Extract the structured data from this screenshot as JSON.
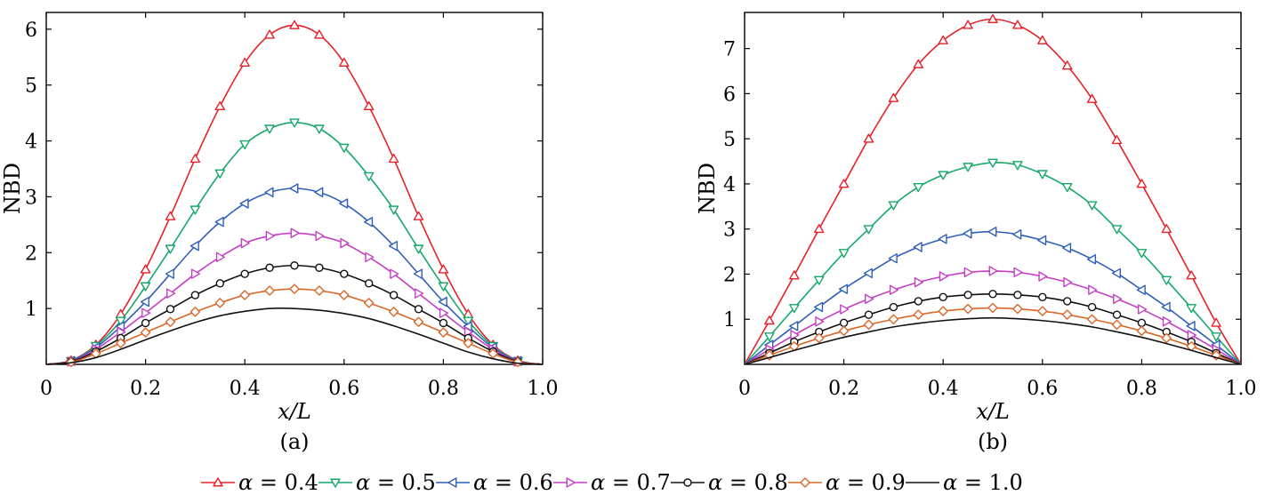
{
  "chart_data": [
    {
      "type": "line",
      "caption": "(a)",
      "xlabel": "x/L",
      "ylabel": "NBD",
      "xlim": [
        0,
        1.0
      ],
      "ylim": [
        0,
        6.3
      ],
      "xticks": [
        "0",
        "0.2",
        "0.4",
        "0.6",
        "0.8",
        "1.0"
      ],
      "xtick_values": [
        0,
        0.2,
        0.4,
        0.6,
        0.8,
        1.0
      ],
      "yticks": [
        "1",
        "2",
        "3",
        "4",
        "5",
        "6"
      ],
      "ytick_values": [
        1,
        2,
        3,
        4,
        5,
        6
      ],
      "x": [
        0,
        0.05,
        0.1,
        0.15,
        0.2,
        0.25,
        0.3,
        0.35,
        0.4,
        0.45,
        0.5,
        0.55,
        0.6,
        0.65,
        0.7,
        0.75,
        0.8,
        0.85,
        0.9,
        0.95,
        1.0
      ],
      "series": [
        {
          "name": "α = 0.4",
          "marker": "triangle-up",
          "values": [
            0,
            0.07,
            0.35,
            0.9,
            1.7,
            2.65,
            3.68,
            4.62,
            5.4,
            5.9,
            6.07,
            5.9,
            5.4,
            4.62,
            3.68,
            2.65,
            1.7,
            0.9,
            0.35,
            0.07,
            0
          ]
        },
        {
          "name": "α = 0.5",
          "marker": "triangle-down",
          "values": [
            0,
            0.06,
            0.33,
            0.78,
            1.4,
            2.07,
            2.77,
            3.42,
            3.94,
            4.22,
            4.33,
            4.22,
            3.88,
            3.37,
            2.77,
            2.07,
            1.4,
            0.78,
            0.33,
            0.06,
            0
          ]
        },
        {
          "name": "α = 0.6",
          "marker": "triangle-left",
          "values": [
            0,
            0.06,
            0.3,
            0.68,
            1.12,
            1.62,
            2.12,
            2.55,
            2.88,
            3.08,
            3.15,
            3.08,
            2.88,
            2.55,
            2.12,
            1.62,
            1.12,
            0.68,
            0.3,
            0.06,
            0
          ]
        },
        {
          "name": "α = 0.7",
          "marker": "triangle-right",
          "values": [
            0,
            0.05,
            0.27,
            0.58,
            0.92,
            1.27,
            1.62,
            1.92,
            2.17,
            2.3,
            2.35,
            2.3,
            2.17,
            1.92,
            1.62,
            1.27,
            0.92,
            0.58,
            0.27,
            0.05,
            0
          ]
        },
        {
          "name": "α = 0.8",
          "marker": "circle",
          "values": [
            0,
            0.05,
            0.23,
            0.47,
            0.74,
            0.99,
            1.24,
            1.45,
            1.62,
            1.73,
            1.77,
            1.73,
            1.62,
            1.45,
            1.24,
            0.99,
            0.74,
            0.47,
            0.23,
            0.05,
            0
          ]
        },
        {
          "name": "α = 0.9",
          "marker": "diamond",
          "values": [
            0,
            0.04,
            0.19,
            0.38,
            0.57,
            0.76,
            0.94,
            1.1,
            1.24,
            1.32,
            1.35,
            1.32,
            1.24,
            1.1,
            0.94,
            0.76,
            0.57,
            0.38,
            0.19,
            0.04,
            0
          ]
        },
        {
          "name": "α = 1.0",
          "marker": "none",
          "values": [
            0,
            0.03,
            0.12,
            0.27,
            0.44,
            0.6,
            0.75,
            0.87,
            0.95,
            1.0,
            1.0,
            0.97,
            0.91,
            0.82,
            0.69,
            0.54,
            0.38,
            0.22,
            0.1,
            0.02,
            0
          ]
        }
      ]
    },
    {
      "type": "line",
      "caption": "(b)",
      "xlabel": "x/L",
      "ylabel": "NBD",
      "xlim": [
        0,
        1.0
      ],
      "ylim": [
        0,
        7.8
      ],
      "xticks": [
        "0",
        "0.2",
        "0.4",
        "0.6",
        "0.8",
        "1.0"
      ],
      "xtick_values": [
        0,
        0.2,
        0.4,
        0.6,
        0.8,
        1.0
      ],
      "yticks": [
        "1",
        "2",
        "3",
        "4",
        "5",
        "6",
        "7"
      ],
      "ytick_values": [
        1,
        2,
        3,
        4,
        5,
        6,
        7
      ],
      "x": [
        0,
        0.05,
        0.1,
        0.15,
        0.2,
        0.25,
        0.3,
        0.35,
        0.4,
        0.45,
        0.5,
        0.55,
        0.6,
        0.65,
        0.7,
        0.75,
        0.8,
        0.85,
        0.9,
        0.95,
        1.0
      ],
      "series": [
        {
          "name": "α = 0.4",
          "marker": "triangle-up",
          "values": [
            0,
            0.97,
            1.97,
            3.0,
            4.0,
            5.0,
            5.9,
            6.65,
            7.18,
            7.52,
            7.65,
            7.52,
            7.18,
            6.62,
            5.88,
            4.97,
            4.0,
            3.0,
            1.97,
            0.92,
            0
          ]
        },
        {
          "name": "α = 0.5",
          "marker": "triangle-down",
          "values": [
            0,
            0.62,
            1.25,
            1.87,
            2.47,
            3.0,
            3.53,
            3.93,
            4.2,
            4.38,
            4.47,
            4.42,
            4.22,
            3.93,
            3.53,
            3.0,
            2.47,
            1.87,
            1.25,
            0.62,
            0
          ]
        },
        {
          "name": "α = 0.6",
          "marker": "triangle-left",
          "values": [
            0,
            0.43,
            0.85,
            1.27,
            1.67,
            2.02,
            2.35,
            2.6,
            2.78,
            2.9,
            2.94,
            2.88,
            2.75,
            2.58,
            2.33,
            2.02,
            1.65,
            1.27,
            0.85,
            0.43,
            0
          ]
        },
        {
          "name": "α = 0.7",
          "marker": "triangle-right",
          "values": [
            0,
            0.33,
            0.65,
            0.95,
            1.22,
            1.45,
            1.65,
            1.82,
            1.95,
            2.04,
            2.07,
            2.04,
            1.95,
            1.82,
            1.65,
            1.45,
            1.22,
            0.95,
            0.65,
            0.33,
            0
          ]
        },
        {
          "name": "α = 0.8",
          "marker": "circle",
          "values": [
            0,
            0.25,
            0.5,
            0.72,
            0.92,
            1.1,
            1.27,
            1.4,
            1.49,
            1.54,
            1.56,
            1.54,
            1.49,
            1.4,
            1.27,
            1.1,
            0.92,
            0.72,
            0.5,
            0.25,
            0
          ]
        },
        {
          "name": "α = 0.9",
          "marker": "diamond",
          "values": [
            0,
            0.2,
            0.4,
            0.58,
            0.74,
            0.88,
            1.0,
            1.1,
            1.18,
            1.23,
            1.25,
            1.23,
            1.18,
            1.1,
            1.0,
            0.88,
            0.74,
            0.58,
            0.4,
            0.2,
            0
          ]
        },
        {
          "name": "α = 1.0",
          "marker": "none",
          "values": [
            0,
            0.15,
            0.31,
            0.46,
            0.6,
            0.72,
            0.83,
            0.91,
            0.97,
            1.01,
            1.03,
            1.01,
            0.97,
            0.91,
            0.83,
            0.72,
            0.6,
            0.46,
            0.31,
            0.15,
            0
          ]
        }
      ]
    }
  ],
  "colors": [
    "#e8202a",
    "#17a86b",
    "#2f5fb8",
    "#c43fc4",
    "#111111",
    "#d9682a",
    "#111111"
  ],
  "legend": [
    {
      "symbol": "α",
      "rest": " = 0.4"
    },
    {
      "symbol": "α",
      "rest": " = 0.5"
    },
    {
      "symbol": "α",
      "rest": " = 0.6"
    },
    {
      "symbol": "α",
      "rest": " = 0.7"
    },
    {
      "symbol": "α",
      "rest": " = 0.8"
    },
    {
      "symbol": "α",
      "rest": " = 0.9"
    },
    {
      "symbol": "α",
      "rest": " = 1.0"
    }
  ],
  "legend_position": "bottom-center"
}
